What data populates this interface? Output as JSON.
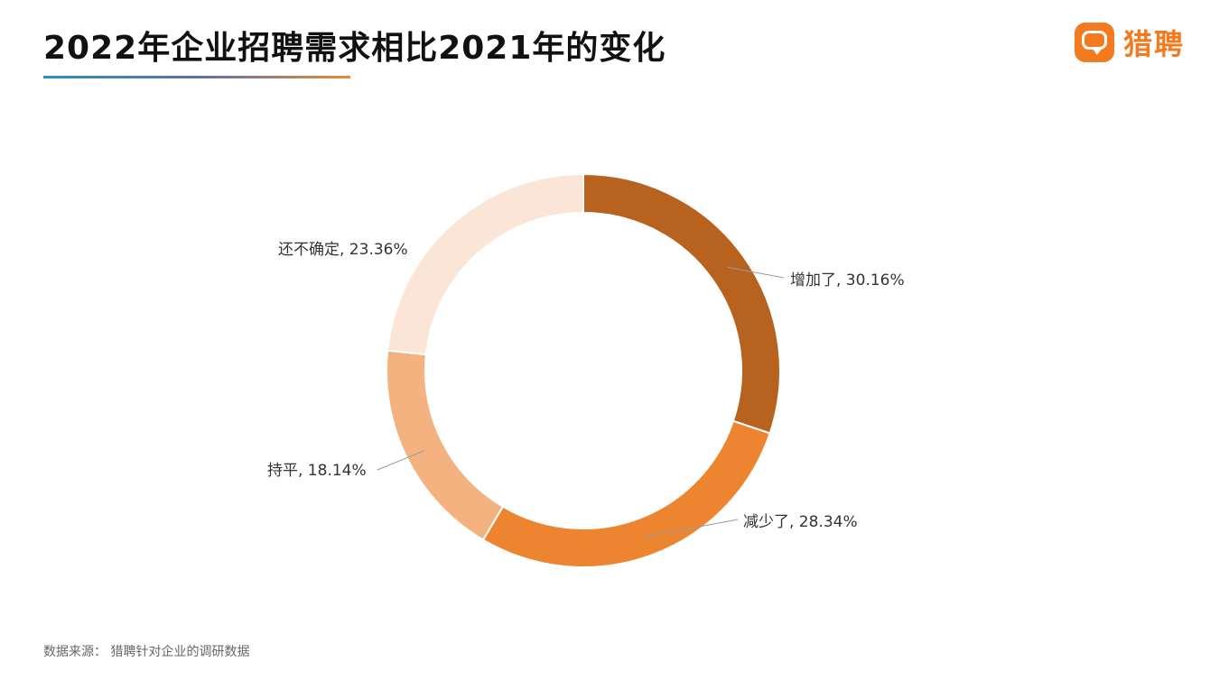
{
  "header": {
    "title": "2022年企业招聘需求相比2021年的变化"
  },
  "brand": {
    "icon": "speech-bubble-icon",
    "name": "猎聘",
    "color": "#f47a1f"
  },
  "chart_data": {
    "type": "pie",
    "donut": true,
    "title": "2022年企业招聘需求相比2021年的变化",
    "slices": [
      {
        "label": "增加了",
        "value": 30.16,
        "display": "增加了, 30.16%",
        "color": "#b8621f"
      },
      {
        "label": "减少了",
        "value": 28.34,
        "display": "减少了, 28.34%",
        "color": "#ed8530"
      },
      {
        "label": "持平",
        "value": 18.14,
        "display": "持平, 18.14%",
        "color": "#f3b27f"
      },
      {
        "label": "还不确定",
        "value": 23.36,
        "display": "还不确定, 23.36%",
        "color": "#fbe5d6"
      }
    ],
    "start_angle": "12 o'clock",
    "direction": "clockwise",
    "legend": "none"
  },
  "footer": {
    "source": "数据来源：  猎聘针对企业的调研数据"
  }
}
